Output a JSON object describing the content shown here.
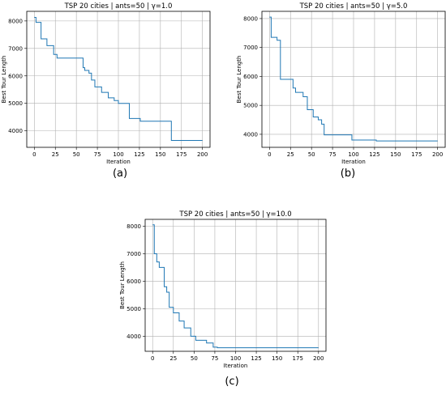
{
  "chart_data": [
    {
      "type": "line",
      "title": "TSP 20 cities | ants=50 | γ=1.0",
      "xlabel": "Iteration",
      "ylabel": "Best Tour Length",
      "caption": "(a)",
      "xlim": [
        -9,
        209
      ],
      "ylim": [
        3400,
        8350
      ],
      "xticks": [
        "0",
        "25",
        "50",
        "75",
        "100",
        "125",
        "150",
        "175",
        "200"
      ],
      "yticks": [
        "4000",
        "5000",
        "6000",
        "7000",
        "8000"
      ],
      "grid": true,
      "color": "#1f77b4",
      "series": [
        {
          "x": [
            0,
            2,
            2,
            8,
            8,
            15,
            15,
            23,
            23,
            27,
            27,
            58,
            58,
            60,
            60,
            65,
            65,
            68,
            68,
            72,
            72,
            80,
            80,
            88,
            88,
            95,
            95,
            100,
            100,
            113,
            113,
            126,
            126,
            163,
            163,
            165,
            165,
            200
          ],
          "y": [
            8130,
            8130,
            7950,
            7950,
            7350,
            7350,
            7100,
            7100,
            6780,
            6780,
            6650,
            6650,
            6300,
            6300,
            6200,
            6200,
            6100,
            6100,
            5850,
            5850,
            5600,
            5600,
            5400,
            5400,
            5200,
            5200,
            5100,
            5100,
            5000,
            5000,
            4450,
            4450,
            4350,
            4350,
            3650,
            3650,
            3650,
            3650
          ]
        }
      ]
    },
    {
      "type": "line",
      "title": "TSP 20 cities | ants=50 | γ=5.0",
      "xlabel": "Iteration",
      "ylabel": "Best Tour Length",
      "caption": "(b)",
      "xlim": [
        -9,
        209
      ],
      "ylim": [
        3550,
        8250
      ],
      "xticks": [
        "0",
        "25",
        "50",
        "75",
        "100",
        "125",
        "150",
        "175",
        "200"
      ],
      "yticks": [
        "4000",
        "5000",
        "6000",
        "7000",
        "8000"
      ],
      "grid": true,
      "color": "#1f77b4",
      "series": [
        {
          "x": [
            0,
            2,
            2,
            9,
            9,
            13,
            13,
            28,
            28,
            31,
            31,
            40,
            40,
            45,
            45,
            52,
            52,
            58,
            58,
            62,
            62,
            65,
            65,
            98,
            98,
            127,
            127,
            200
          ],
          "y": [
            8050,
            8050,
            7350,
            7350,
            7250,
            7250,
            5900,
            5900,
            5600,
            5600,
            5450,
            5450,
            5300,
            5300,
            4850,
            4850,
            4600,
            4600,
            4500,
            4500,
            4350,
            4350,
            3980,
            3980,
            3800,
            3800,
            3770,
            3770
          ]
        }
      ]
    },
    {
      "type": "line",
      "title": "TSP 20 cities | ants=50 | γ=10.0",
      "xlabel": "Iteration",
      "ylabel": "Best Tour Length",
      "caption": "(c)",
      "xlim": [
        -9,
        209
      ],
      "ylim": [
        3450,
        8250
      ],
      "xticks": [
        "0",
        "25",
        "50",
        "75",
        "100",
        "125",
        "150",
        "175",
        "200"
      ],
      "yticks": [
        "4000",
        "5000",
        "6000",
        "7000",
        "8000"
      ],
      "grid": true,
      "color": "#1f77b4",
      "series": [
        {
          "x": [
            0,
            2,
            2,
            5,
            5,
            8,
            8,
            14,
            14,
            17,
            17,
            20,
            20,
            25,
            25,
            32,
            32,
            38,
            38,
            46,
            46,
            52,
            52,
            65,
            65,
            73,
            73,
            78,
            78,
            200
          ],
          "y": [
            8050,
            8050,
            7000,
            7000,
            6700,
            6700,
            6500,
            6500,
            5800,
            5800,
            5600,
            5600,
            5050,
            5050,
            4850,
            4850,
            4550,
            4550,
            4300,
            4300,
            4000,
            4000,
            3850,
            3850,
            3750,
            3750,
            3600,
            3600,
            3580,
            3580
          ]
        }
      ]
    }
  ]
}
